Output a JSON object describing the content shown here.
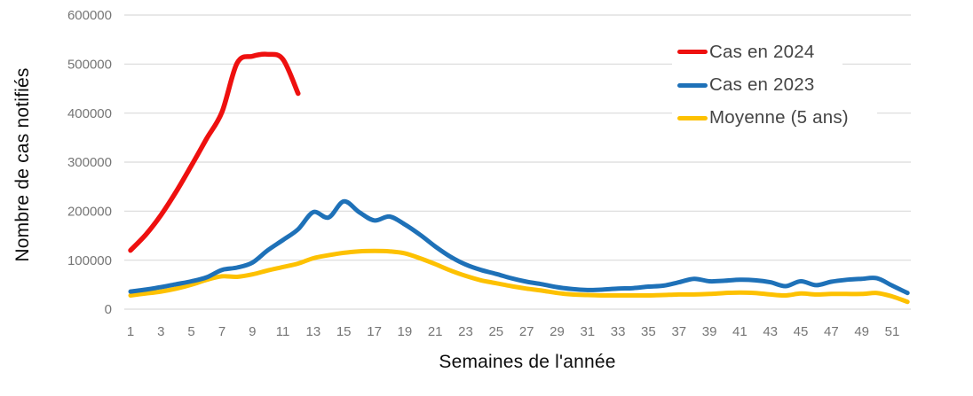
{
  "chart_data": {
    "type": "line",
    "title": "",
    "xlabel": "Semaines de l'année",
    "ylabel": "Nombre de cas notifiés",
    "x_tick_labels": [
      1,
      3,
      5,
      7,
      9,
      11,
      13,
      15,
      17,
      19,
      21,
      23,
      25,
      27,
      29,
      31,
      33,
      35,
      37,
      39,
      41,
      43,
      45,
      47,
      49,
      51
    ],
    "x_range_weeks": [
      1,
      52
    ],
    "y_ticks": [
      0,
      100000,
      200000,
      300000,
      400000,
      500000,
      600000
    ],
    "ylim": [
      0,
      600000
    ],
    "grid": true,
    "legend_position": "top-right",
    "background_color": "#ffffff",
    "gridline_color": "#d9d9d9",
    "tick_label_color": "#757575",
    "axis_title_color": "#0d0d0d",
    "legend_text_color": "#454545",
    "series": [
      {
        "name": "Cas en 2024",
        "color": "#ee100f",
        "start_week": 1,
        "values": [
          120000,
          152000,
          192000,
          240000,
          293000,
          348000,
          402000,
          502000,
          516000,
          520000,
          510000,
          440000
        ]
      },
      {
        "name": "Cas en 2023",
        "color": "#1e71b8",
        "start_week": 1,
        "values": [
          36000,
          40000,
          45000,
          51000,
          57000,
          65000,
          80000,
          85000,
          95000,
          120000,
          141000,
          163000,
          198000,
          187000,
          220000,
          198000,
          181000,
          189000,
          173000,
          152000,
          128000,
          107000,
          91000,
          80000,
          72000,
          63000,
          56000,
          51000,
          45000,
          41000,
          39000,
          40000,
          42000,
          43000,
          46000,
          48000,
          55000,
          62000,
          57000,
          58000,
          60000,
          59000,
          55000,
          47000,
          57000,
          49000,
          56000,
          60000,
          62000,
          63000,
          48000,
          33000
        ]
      },
      {
        "name": "Moyenne (5 ans)",
        "color": "#fdc101",
        "start_week": 1,
        "values": [
          28000,
          32000,
          36000,
          42000,
          50000,
          60000,
          67000,
          66000,
          71000,
          79000,
          86000,
          93000,
          104000,
          110000,
          115000,
          118000,
          119000,
          118000,
          114000,
          104000,
          92000,
          79000,
          68000,
          59000,
          53000,
          47000,
          42000,
          38000,
          33000,
          30000,
          29000,
          28000,
          28000,
          28000,
          28000,
          29000,
          30000,
          30000,
          31000,
          33000,
          34000,
          33000,
          30000,
          28000,
          32000,
          30000,
          31000,
          31000,
          31000,
          33000,
          26000,
          15000
        ]
      }
    ]
  }
}
